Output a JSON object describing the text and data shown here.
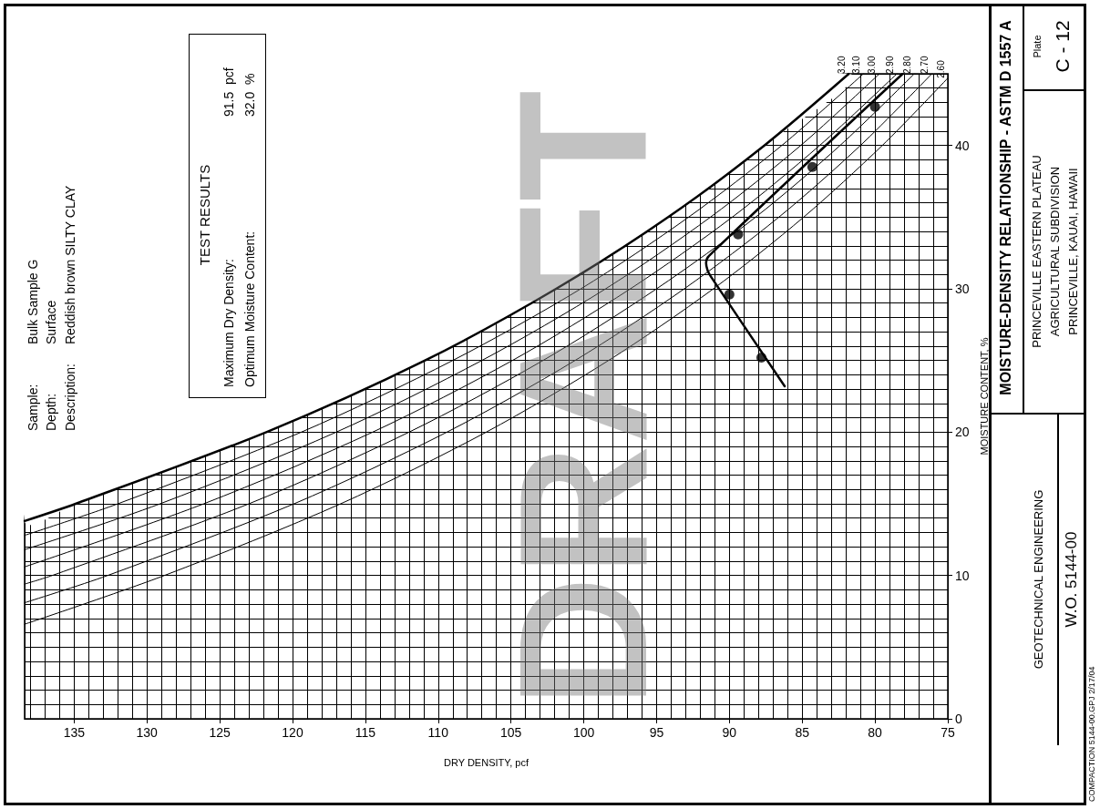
{
  "chart_data": {
    "type": "line",
    "title": "MOISTURE-DENSITY RELATIONSHIP - ASTM D 1557 A",
    "xlabel": "DRY DENSITY, pcf",
    "ylabel": "MOISTURE CONTENT, %",
    "xlim": [
      138.4,
      75
    ],
    "xticks": [
      135,
      130,
      125,
      120,
      115,
      110,
      105,
      100,
      95,
      90,
      85,
      80,
      75
    ],
    "ylim": [
      0,
      45
    ],
    "yticks": [
      0,
      10,
      20,
      30,
      40
    ],
    "grid": true,
    "series": [
      {
        "name": "3.20",
        "color": "#000000",
        "x": [
          138.4,
          134.9,
          121.8,
          110.9,
          101.9,
          94.2,
          87.6,
          81.8
        ],
        "values": [
          13.8,
          15,
          20,
          25,
          30,
          35,
          40,
          45
        ]
      },
      {
        "name": "3.10",
        "color": "#000000",
        "x": [
          138.4,
          132.0,
          119.4,
          109.0,
          100.2,
          92.8,
          86.4,
          80.8
        ],
        "values": [
          12.8,
          15,
          20,
          25,
          30,
          35,
          40,
          45
        ]
      },
      {
        "name": "3.00",
        "color": "#000000",
        "x": [
          138.4,
          129.1,
          117.0,
          107.0,
          98.5,
          91.3,
          85.1,
          79.7
        ],
        "values": [
          11.8,
          15,
          20,
          25,
          30,
          35,
          40,
          45
        ]
      },
      {
        "name": "2.90",
        "color": "#000000",
        "x": [
          138.4,
          126.1,
          114.5,
          104.9,
          96.8,
          89.8,
          83.8,
          78.5
        ],
        "values": [
          10.6,
          15,
          20,
          25,
          30,
          35,
          40,
          45
        ]
      },
      {
        "name": "2.80",
        "color": "#000000",
        "x": [
          138.4,
          136.5,
          123.0,
          112.0,
          102.8,
          95.0,
          88.2,
          82.4,
          77.3
        ],
        "values": [
          9.4,
          10,
          15,
          20,
          25,
          30,
          35,
          40,
          45
        ]
      },
      {
        "name": "2.70",
        "color": "#000000",
        "x": [
          138.4,
          132.7,
          119.9,
          109.4,
          100.6,
          93.1,
          86.6,
          81.0,
          76.1
        ],
        "values": [
          8.1,
          10,
          15,
          20,
          25,
          30,
          35,
          40,
          45
        ]
      },
      {
        "name": "2.60",
        "color": "#000000",
        "x": [
          138.4,
          128.8,
          116.7,
          106.7,
          98.3,
          91.1,
          84.9,
          79.5,
          75
        ],
        "values": [
          6.6,
          10,
          15,
          20,
          25,
          30,
          35,
          40,
          44.7
        ]
      },
      {
        "color": "#000000",
        "x": [
          86.2,
          91.3,
          91.5,
          91.6,
          91.4,
          78.1
        ],
        "values": [
          23.2,
          30.9,
          31.3,
          31.8,
          32.3,
          45
        ]
      },
      {
        "type": "scatter",
        "marker": "circle",
        "color": "#000000",
        "x": [
          87.8,
          90.0,
          89.4,
          84.3,
          80.0
        ],
        "values": [
          25.2,
          29.6,
          33.8,
          38.5,
          42.7
        ]
      }
    ],
    "annotations": [
      "Sample:",
      "Bulk Sample G",
      "Depth:",
      "Surface",
      "Description:",
      "Reddish brown SILTY CLAY",
      "TEST RESULTS",
      "Maximum Dry Density:",
      "91.5  pcf",
      "Optimum Moisture Content:",
      "32.0  %",
      "DRAFT",
      "GEOTECHNICAL ENGINEERING",
      "W.O. 5144-00",
      "PRINCEVILLE EASTERN PLATEAU",
      "AGRICULTURAL SUBDIVISION",
      "PRINCEVILLE, KAUAI, HAWAII",
      "Plate",
      "C - 12",
      "COMPACTION 5144-00.GPJ 2/17/04"
    ]
  }
}
